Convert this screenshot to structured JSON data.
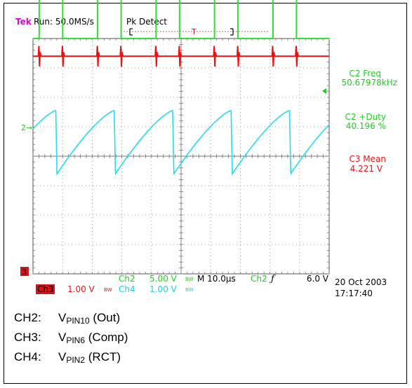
{
  "header": {
    "brand": "Tek",
    "run": "Run: 50.0MS/s",
    "mode": "Pk Detect",
    "trigger_mark": "T"
  },
  "readouts": {
    "c2_freq_label": "C2 Freq",
    "c2_freq_value": "50.67978kHz",
    "c2_duty_label": "C2 +Duty",
    "c2_duty_value": "40.196 %",
    "c3_mean_label": "C3 Mean",
    "c3_mean_value": "4.221 V"
  },
  "markers": {
    "ch2": "2",
    "ch3": "3"
  },
  "bottom": {
    "ch2_label": "Ch2",
    "ch2_scale": "5.00 V",
    "ch3_label": "Ch3",
    "ch3_scale": "1.00 V",
    "ch4_label": "Ch4",
    "ch4_scale": "1.00 V",
    "bw_symbol": "BW",
    "timebase": "M 10.0µs",
    "trig_source": "Ch2",
    "trig_slope": "ƒ",
    "trig_level": "6.0 V",
    "date": "20 Oct 2003",
    "time": "17:17:40"
  },
  "legend": [
    {
      "ch": "CH2:",
      "v": "V",
      "sub": "PIN10",
      "desc": " (Out)"
    },
    {
      "ch": "CH3:",
      "v": "V",
      "sub": "PIN6",
      "desc": " (Comp)"
    },
    {
      "ch": "CH4:",
      "v": "V",
      "sub": "PIN2",
      "desc": " (RCT)"
    }
  ],
  "colors": {
    "ch2": "#33dd33",
    "ch3": "#ee1111",
    "ch4": "#22ddee",
    "brand": "#dd00dd",
    "grid": "#888888"
  },
  "chart_data": {
    "type": "line",
    "title": "",
    "x_divisions": 10,
    "y_divisions": 8,
    "time_per_div_us": 10.0,
    "series": [
      {
        "name": "Ch2",
        "shape": "square",
        "period_us": 19.73,
        "duty_percent": 40.196,
        "low_div": 4.0,
        "high_div": 6.6,
        "first_rise_us": 2.1
      },
      {
        "name": "Ch3",
        "shape": "dc-with-spikes",
        "level_div": 3.4,
        "spike_amplitude_div": 0.35
      },
      {
        "name": "Ch4",
        "shape": "sawtooth",
        "period_us": 19.73,
        "min_div": -0.6,
        "max_div": 1.55,
        "first_peak_us": 8.1
      }
    ]
  }
}
